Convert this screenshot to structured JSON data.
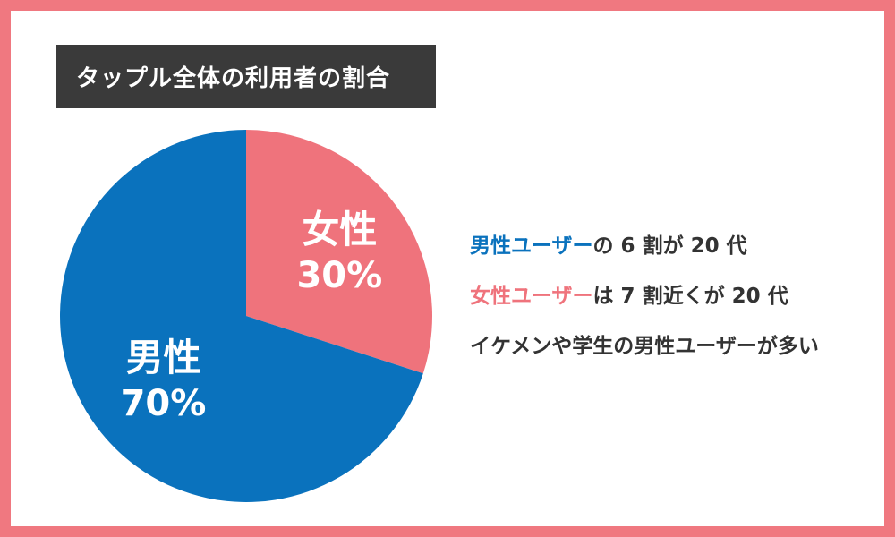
{
  "title": "タップル全体の利用者の割合",
  "colors": {
    "frame": "#f07880",
    "male": "#0a72bd",
    "female": "#ef737c",
    "title_bg": "#3a3a3a",
    "text": "#333333"
  },
  "chart_data": {
    "type": "pie",
    "slices": [
      {
        "name": "女性",
        "value": 30,
        "pct_label": "30%",
        "color": "#ef737c"
      },
      {
        "name": "男性",
        "value": 70,
        "pct_label": "70%",
        "color": "#0a72bd"
      }
    ],
    "start": "12 o'clock",
    "direction": "clockwise"
  },
  "notes": [
    {
      "highlight": "男性ユーザー",
      "highlight_color": "#0a72bd",
      "rest": "の 6 割が 20 代"
    },
    {
      "highlight": "女性ユーザー",
      "highlight_color": "#ef737c",
      "rest": "は 7 割近くが 20 代"
    },
    {
      "highlight": "",
      "highlight_color": "#333333",
      "rest": "イケメンや学生の男性ユーザーが多い"
    }
  ]
}
